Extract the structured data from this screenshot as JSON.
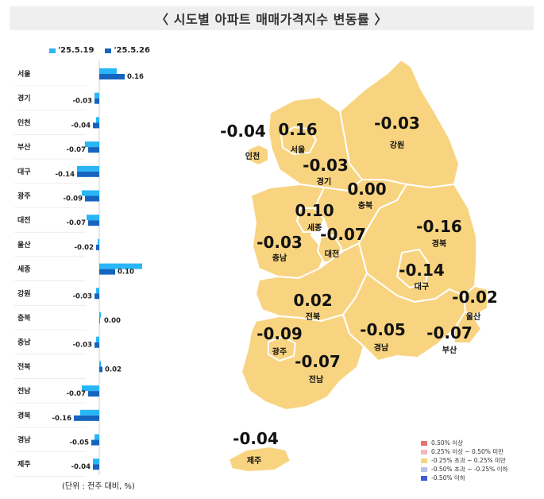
{
  "title": "〈 시도별 아파트 매매가격지수 변동률 〉",
  "chart_data": {
    "type": "bar",
    "orientation": "horizontal",
    "categories": [
      "서울",
      "경기",
      "인천",
      "부산",
      "대구",
      "광주",
      "대전",
      "울산",
      "세종",
      "강원",
      "충북",
      "충남",
      "전북",
      "전남",
      "경북",
      "경남",
      "제주"
    ],
    "series": [
      {
        "name": "'25.5.19",
        "color": "#29b6f6",
        "values": [
          0.11,
          -0.03,
          -0.02,
          -0.09,
          -0.14,
          -0.11,
          -0.08,
          -0.01,
          0.27,
          -0.02,
          0.01,
          -0.02,
          0.01,
          -0.11,
          -0.12,
          -0.03,
          -0.04
        ]
      },
      {
        "name": "'25.5.26",
        "color": "#1565c0",
        "values": [
          0.16,
          -0.03,
          -0.04,
          -0.07,
          -0.14,
          -0.09,
          -0.07,
          -0.02,
          0.1,
          -0.03,
          0.0,
          -0.03,
          0.02,
          -0.07,
          -0.16,
          -0.05,
          -0.04
        ]
      }
    ],
    "value_labels": [
      "0.16",
      "-0.03",
      "-0.04",
      "-0.07",
      "-0.14",
      "-0.09",
      "-0.07",
      "-0.02",
      "0.10",
      "-0.03",
      "0.00",
      "-0.03",
      "0.02",
      "-0.07",
      "-0.16",
      "-0.05",
      "-0.04"
    ],
    "unit_note": "(단위 : 전주 대비, %)"
  },
  "map": {
    "fill_color": "#f8d480",
    "regions": [
      {
        "id": "seoul",
        "name": "서울",
        "value": "0.16"
      },
      {
        "id": "incheon",
        "name": "인천",
        "value": "-0.04"
      },
      {
        "id": "gyeonggi",
        "name": "경기",
        "value": "-0.03"
      },
      {
        "id": "gangwon",
        "name": "강원",
        "value": "-0.03"
      },
      {
        "id": "chungbuk",
        "name": "충북",
        "value": "0.00"
      },
      {
        "id": "sejong",
        "name": "세종",
        "value": "0.10"
      },
      {
        "id": "chungnam",
        "name": "충남",
        "value": "-0.03"
      },
      {
        "id": "daejeon",
        "name": "대전",
        "value": "-0.07"
      },
      {
        "id": "gyeongbuk",
        "name": "경북",
        "value": "-0.16"
      },
      {
        "id": "daegu",
        "name": "대구",
        "value": "-0.14"
      },
      {
        "id": "ulsan",
        "name": "울산",
        "value": "-0.02"
      },
      {
        "id": "jeonbuk",
        "name": "전북",
        "value": "0.02"
      },
      {
        "id": "gwangju",
        "name": "광주",
        "value": "-0.09"
      },
      {
        "id": "jeonnam",
        "name": "전남",
        "value": "-0.07"
      },
      {
        "id": "gyeongnam",
        "name": "경남",
        "value": "-0.05"
      },
      {
        "id": "busan",
        "name": "부산",
        "value": "-0.07"
      },
      {
        "id": "jeju",
        "name": "제주",
        "value": "-0.04"
      }
    ],
    "legend": [
      {
        "label": "0.50% 이상",
        "color": "#e57373"
      },
      {
        "label": "0.25% 이상 ~ 0.50% 미만",
        "color": "#f4b8b8"
      },
      {
        "label": "-0.25% 초과 ~ 0.25% 미만",
        "color": "#f8d480"
      },
      {
        "label": "-0.50% 초과 ~ -0.25% 이하",
        "color": "#b7c3ee"
      },
      {
        "label": "-0.50% 이하",
        "color": "#3f5bd6"
      }
    ]
  }
}
